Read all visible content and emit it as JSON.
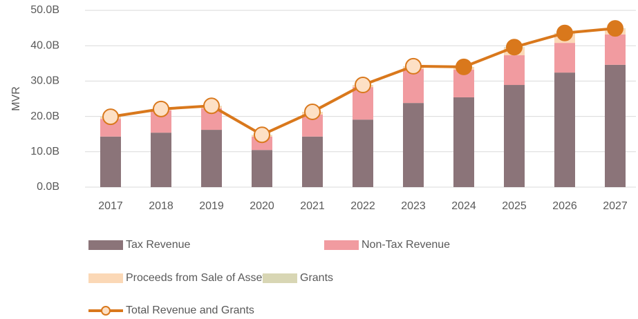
{
  "chart_data": {
    "type": "stacked-bar-line",
    "y_axis_label": "MVR",
    "categories": [
      "2017",
      "2018",
      "2019",
      "2020",
      "2021",
      "2022",
      "2023",
      "2024",
      "2025",
      "2026",
      "2027"
    ],
    "series": [
      {
        "name": "Tax Revenue",
        "color": "#8b7479",
        "values": [
          14.3,
          15.4,
          16.2,
          10.5,
          14.3,
          19.1,
          23.8,
          25.4,
          28.9,
          32.4,
          34.6
        ]
      },
      {
        "name": "Non-Tax Revenue",
        "color": "#f19ba0",
        "values": [
          5.0,
          6.3,
          6.1,
          3.8,
          6.2,
          9.2,
          9.6,
          7.8,
          8.4,
          8.4,
          8.6
        ]
      },
      {
        "name": "Proceeds from Sale of Assets",
        "color": "#fbd8b6",
        "values": [
          0.5,
          0.3,
          0.6,
          0.4,
          0.7,
          0.5,
          0.7,
          0.7,
          2.1,
          2.6,
          1.5
        ]
      },
      {
        "name": "Grants",
        "color": "#d8d6b4",
        "values": [
          0.1,
          0.1,
          0.1,
          0.1,
          0.1,
          0.1,
          0.1,
          0.1,
          0.2,
          0.2,
          0.2
        ]
      },
      {
        "name": "Total Revenue and Grants",
        "type": "line",
        "color": "#d9781c",
        "marker_colors": [
          "#fde0c5",
          "#fde0c5",
          "#fde0c5",
          "#fde0c5",
          "#fde0c5",
          "#fde0c5",
          "#fde0c5",
          "#d9781c",
          "#d9781c",
          "#d9781c",
          "#d9781c"
        ],
        "values": [
          19.9,
          22.1,
          23.0,
          14.8,
          21.3,
          28.9,
          34.2,
          34.0,
          39.6,
          43.6,
          44.9
        ]
      }
    ],
    "ylim": [
      0,
      50
    ],
    "yticks": [
      {
        "value": 0,
        "label": "0.0B"
      },
      {
        "value": 10,
        "label": "10.0B"
      },
      {
        "value": 20,
        "label": "20.0B"
      },
      {
        "value": 30,
        "label": "30.0B"
      },
      {
        "value": 40,
        "label": "40.0B"
      },
      {
        "value": 50,
        "label": "50.0B"
      }
    ],
    "grid": true
  }
}
